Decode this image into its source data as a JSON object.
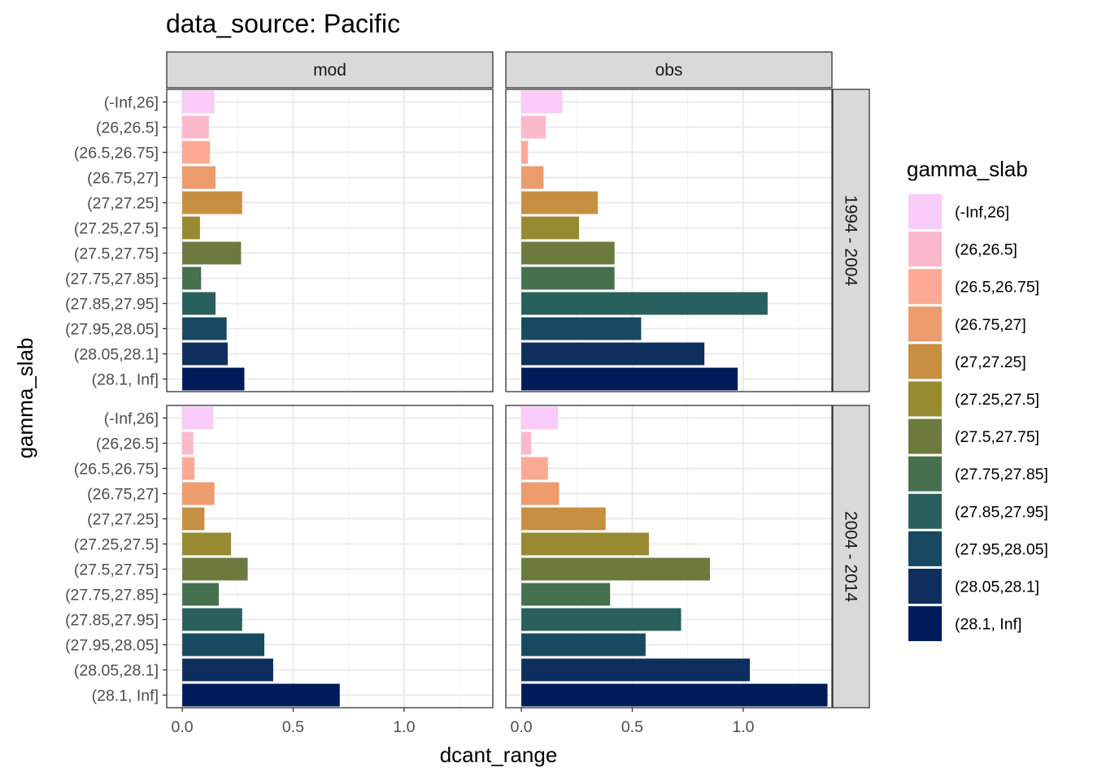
{
  "title": "data_source: Pacific",
  "chart_data": {
    "type": "bar",
    "orientation": "horizontal",
    "xlabel": "dcant_range",
    "ylabel": "gamma_slab",
    "xlim": [
      -0.07,
      1.4
    ],
    "x_ticks": [
      0.0,
      0.5,
      1.0
    ],
    "x_tick_labels": [
      "0.0",
      "0.5",
      "1.0"
    ],
    "grid": true,
    "facet_columns": [
      "mod",
      "obs"
    ],
    "facet_rows": [
      "1994 - 2004",
      "2004 - 2014"
    ],
    "categories": [
      "(-Inf,26]",
      "(26,26.5]",
      "(26.5,26.75]",
      "(26.75,27]",
      "(27,27.25]",
      "(27.25,27.5]",
      "(27.5,27.75]",
      "(27.75,27.85]",
      "(27.85,27.95]",
      "(27.95,28.05]",
      "(28.05,28.1]",
      "(28.1, Inf]"
    ],
    "colors": [
      "#F9CBF8",
      "#FCB9CB",
      "#FBA995",
      "#EC9C6D",
      "#C68F41",
      "#988A31",
      "#6D7A3E",
      "#47704F",
      "#295F5C",
      "#174961",
      "#0E2F5D",
      "#001B5A"
    ],
    "panels": [
      {
        "column": "mod",
        "row": "1994 - 2004",
        "values": [
          0.145,
          0.12,
          0.125,
          0.15,
          0.27,
          0.08,
          0.265,
          0.085,
          0.15,
          0.2,
          0.205,
          0.28
        ]
      },
      {
        "column": "obs",
        "row": "1994 - 2004",
        "values": [
          0.185,
          0.11,
          0.03,
          0.1,
          0.345,
          0.26,
          0.42,
          0.42,
          1.11,
          0.54,
          0.825,
          0.975
        ]
      },
      {
        "column": "mod",
        "row": "2004 - 2014",
        "values": [
          0.14,
          0.05,
          0.055,
          0.145,
          0.1,
          0.22,
          0.295,
          0.165,
          0.27,
          0.37,
          0.41,
          0.71
        ]
      },
      {
        "column": "obs",
        "row": "2004 - 2014",
        "values": [
          0.165,
          0.045,
          0.12,
          0.17,
          0.38,
          0.575,
          0.85,
          0.4,
          0.72,
          0.56,
          1.03,
          1.38
        ]
      }
    ],
    "legend": {
      "title": "gamma_slab",
      "position": "right"
    }
  }
}
